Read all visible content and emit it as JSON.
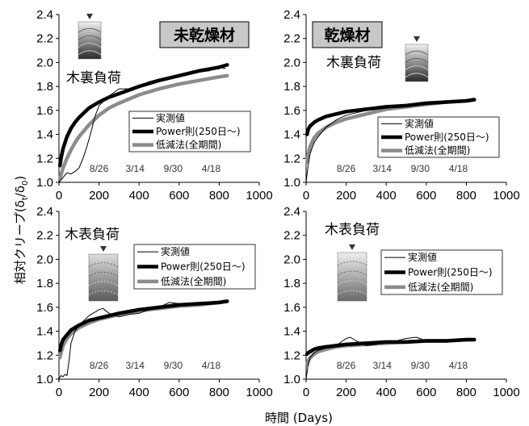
{
  "chart_data": [
    {
      "type": "line",
      "panel": "top-left",
      "title": "未乾燥材",
      "load_label": "木裏負荷",
      "xlim": [
        0,
        1000
      ],
      "ylim": [
        1.0,
        2.4
      ],
      "xticks": [
        "0",
        "200",
        "400",
        "600",
        "800",
        "1000"
      ],
      "yticks": [
        "1.0",
        "1.2",
        "1.4",
        "1.6",
        "1.8",
        "2.0",
        "2.2",
        "2.4"
      ],
      "date_labels": [
        {
          "x": 200,
          "text": "8/26"
        },
        {
          "x": 380,
          "text": "3/14"
        },
        {
          "x": 570,
          "text": "9/30"
        },
        {
          "x": 760,
          "text": "4/18"
        }
      ],
      "legend": [
        "実測値",
        "Power則(250日～)",
        "低減法(全期間)"
      ],
      "series": [
        {
          "name": "実測値",
          "x": [
            0,
            20,
            40,
            60,
            80,
            100,
            120,
            140,
            160,
            180,
            200,
            250,
            300,
            350,
            400,
            450,
            500,
            550,
            600,
            650,
            700,
            750,
            800,
            830
          ],
          "y": [
            1.0,
            1.04,
            1.08,
            1.07,
            1.09,
            1.12,
            1.2,
            1.3,
            1.42,
            1.55,
            1.64,
            1.72,
            1.78,
            1.78,
            1.8,
            1.84,
            1.86,
            1.86,
            1.9,
            1.9,
            1.92,
            1.93,
            1.96,
            1.95
          ]
        },
        {
          "name": "Power則(250日～)",
          "x": [
            5,
            10,
            20,
            40,
            60,
            80,
            100,
            150,
            200,
            250,
            300,
            400,
            500,
            600,
            700,
            800,
            840
          ],
          "y": [
            1.14,
            1.2,
            1.28,
            1.38,
            1.45,
            1.5,
            1.54,
            1.62,
            1.67,
            1.71,
            1.74,
            1.8,
            1.85,
            1.89,
            1.93,
            1.96,
            1.98
          ]
        },
        {
          "name": "低減法(全期間)",
          "x": [
            5,
            10,
            20,
            40,
            60,
            80,
            100,
            150,
            200,
            250,
            300,
            400,
            500,
            600,
            700,
            800,
            840
          ],
          "y": [
            1.03,
            1.06,
            1.12,
            1.2,
            1.27,
            1.33,
            1.38,
            1.48,
            1.56,
            1.62,
            1.66,
            1.73,
            1.78,
            1.82,
            1.85,
            1.88,
            1.89
          ]
        }
      ]
    },
    {
      "type": "line",
      "panel": "top-right",
      "title": "乾燥材",
      "load_label": "木裏負荷",
      "xlim": [
        0,
        1000
      ],
      "ylim": [
        1.0,
        2.4
      ],
      "xticks": [
        "0",
        "200",
        "400",
        "600",
        "800",
        "1000"
      ],
      "yticks": [
        "1.0",
        "1.2",
        "1.4",
        "1.6",
        "1.8",
        "2.0",
        "2.2",
        "2.4"
      ],
      "date_labels": [
        {
          "x": 200,
          "text": "8/26"
        },
        {
          "x": 380,
          "text": "3/14"
        },
        {
          "x": 570,
          "text": "9/30"
        },
        {
          "x": 760,
          "text": "4/18"
        }
      ],
      "legend": [
        "実測値",
        "Power則(250日～)",
        "低減法(全期間)"
      ],
      "series": [
        {
          "name": "実測値",
          "x": [
            0,
            10,
            20,
            40,
            60,
            80,
            100,
            150,
            200,
            250,
            300,
            350,
            400,
            450,
            500,
            550,
            600,
            650,
            700,
            750,
            800,
            830
          ],
          "y": [
            1.0,
            1.14,
            1.24,
            1.33,
            1.38,
            1.42,
            1.46,
            1.52,
            1.56,
            1.58,
            1.6,
            1.62,
            1.62,
            1.63,
            1.65,
            1.66,
            1.65,
            1.66,
            1.67,
            1.68,
            1.69,
            1.69
          ]
        },
        {
          "name": "Power則(250日～)",
          "x": [
            5,
            10,
            20,
            40,
            60,
            100,
            150,
            200,
            300,
            400,
            500,
            600,
            700,
            800,
            840
          ],
          "y": [
            1.4,
            1.44,
            1.47,
            1.5,
            1.52,
            1.55,
            1.57,
            1.59,
            1.61,
            1.63,
            1.64,
            1.66,
            1.67,
            1.68,
            1.69
          ]
        },
        {
          "name": "低減法(全期間)",
          "x": [
            5,
            10,
            20,
            40,
            60,
            100,
            150,
            200,
            300,
            400,
            500,
            600,
            700,
            800,
            840
          ],
          "y": [
            1.17,
            1.23,
            1.3,
            1.37,
            1.41,
            1.46,
            1.5,
            1.53,
            1.57,
            1.61,
            1.63,
            1.65,
            1.67,
            1.68,
            1.69
          ]
        }
      ]
    },
    {
      "type": "line",
      "panel": "bottom-left",
      "title": "",
      "load_label": "木表負荷",
      "xlim": [
        0,
        1000
      ],
      "ylim": [
        1.0,
        2.4
      ],
      "xticks": [
        "0",
        "200",
        "400",
        "600",
        "800",
        "1000"
      ],
      "yticks": [
        "1.0",
        "1.2",
        "1.4",
        "1.6",
        "1.8",
        "2.0",
        "2.2",
        "2.4"
      ],
      "date_labels": [
        {
          "x": 200,
          "text": "8/26"
        },
        {
          "x": 380,
          "text": "3/14"
        },
        {
          "x": 570,
          "text": "9/30"
        },
        {
          "x": 760,
          "text": "4/18"
        }
      ],
      "legend": [
        "実測値",
        "Power則(250日～)",
        "低減法(全期間)"
      ],
      "series": [
        {
          "name": "実測値",
          "x": [
            0,
            10,
            20,
            30,
            40,
            50,
            60,
            80,
            100,
            150,
            200,
            220,
            250,
            300,
            350,
            400,
            450,
            500,
            550,
            600,
            650,
            700,
            750,
            800,
            830
          ],
          "y": [
            1.0,
            1.03,
            1.02,
            1.04,
            1.03,
            1.15,
            1.3,
            1.4,
            1.45,
            1.53,
            1.58,
            1.59,
            1.55,
            1.52,
            1.54,
            1.55,
            1.58,
            1.6,
            1.64,
            1.63,
            1.62,
            1.63,
            1.64,
            1.65,
            1.64
          ]
        },
        {
          "name": "Power則(250日～)",
          "x": [
            5,
            10,
            20,
            40,
            60,
            100,
            150,
            200,
            300,
            400,
            500,
            600,
            700,
            800,
            840
          ],
          "y": [
            1.24,
            1.28,
            1.33,
            1.37,
            1.41,
            1.45,
            1.49,
            1.51,
            1.55,
            1.58,
            1.6,
            1.62,
            1.63,
            1.64,
            1.65
          ]
        },
        {
          "name": "低減法(全期間)",
          "x": [
            5,
            10,
            20,
            40,
            60,
            100,
            150,
            200,
            300,
            400,
            500,
            600,
            700,
            800,
            840
          ],
          "y": [
            1.18,
            1.22,
            1.28,
            1.34,
            1.38,
            1.43,
            1.47,
            1.5,
            1.54,
            1.57,
            1.59,
            1.61,
            1.62,
            1.64,
            1.65
          ]
        }
      ]
    },
    {
      "type": "line",
      "panel": "bottom-right",
      "title": "",
      "load_label": "木表負荷",
      "xlim": [
        0,
        1000
      ],
      "ylim": [
        1.0,
        2.4
      ],
      "xticks": [
        "0",
        "200",
        "400",
        "600",
        "800",
        "1000"
      ],
      "yticks": [
        "1.0",
        "1.2",
        "1.4",
        "1.6",
        "1.8",
        "2.0",
        "2.2",
        "2.4"
      ],
      "date_labels": [
        {
          "x": 200,
          "text": "8/26"
        },
        {
          "x": 380,
          "text": "3/14"
        },
        {
          "x": 570,
          "text": "9/30"
        },
        {
          "x": 760,
          "text": "4/18"
        }
      ],
      "legend": [
        "実測値",
        "Power則(250日～)",
        "低減法(全期間)"
      ],
      "series": [
        {
          "name": "実測値",
          "x": [
            0,
            10,
            20,
            40,
            60,
            100,
            150,
            200,
            220,
            250,
            300,
            350,
            400,
            450,
            500,
            550,
            600,
            650,
            700,
            750,
            800,
            830
          ],
          "y": [
            1.0,
            1.12,
            1.18,
            1.22,
            1.24,
            1.26,
            1.28,
            1.34,
            1.35,
            1.32,
            1.28,
            1.29,
            1.31,
            1.32,
            1.34,
            1.35,
            1.32,
            1.31,
            1.32,
            1.33,
            1.33,
            1.33
          ]
        },
        {
          "name": "Power則(250日～)",
          "x": [
            5,
            10,
            20,
            40,
            60,
            100,
            150,
            200,
            300,
            400,
            500,
            600,
            700,
            800,
            840
          ],
          "y": [
            1.21,
            1.22,
            1.23,
            1.25,
            1.26,
            1.27,
            1.28,
            1.29,
            1.3,
            1.31,
            1.31,
            1.32,
            1.32,
            1.33,
            1.33
          ]
        },
        {
          "name": "低減法(全期間)",
          "x": [
            5,
            10,
            20,
            40,
            60,
            100,
            150,
            200,
            300,
            400,
            500,
            600,
            700,
            800,
            840
          ],
          "y": [
            1.12,
            1.15,
            1.18,
            1.21,
            1.23,
            1.25,
            1.27,
            1.28,
            1.29,
            1.3,
            1.31,
            1.32,
            1.32,
            1.33,
            1.33
          ]
        }
      ]
    }
  ],
  "axis_labels": {
    "ylabel_main": "相対クリープ(δ",
    "ylabel_sub": "t",
    "ylabel_mid": "/δ",
    "ylabel_sub2": "0",
    "ylabel_close": ")",
    "xlabel": "時間 (Days)"
  },
  "colors": {
    "measured": "#000000",
    "power": "#000000",
    "reduction": "#8c8c8c",
    "title_box": "#c8c8c8"
  }
}
